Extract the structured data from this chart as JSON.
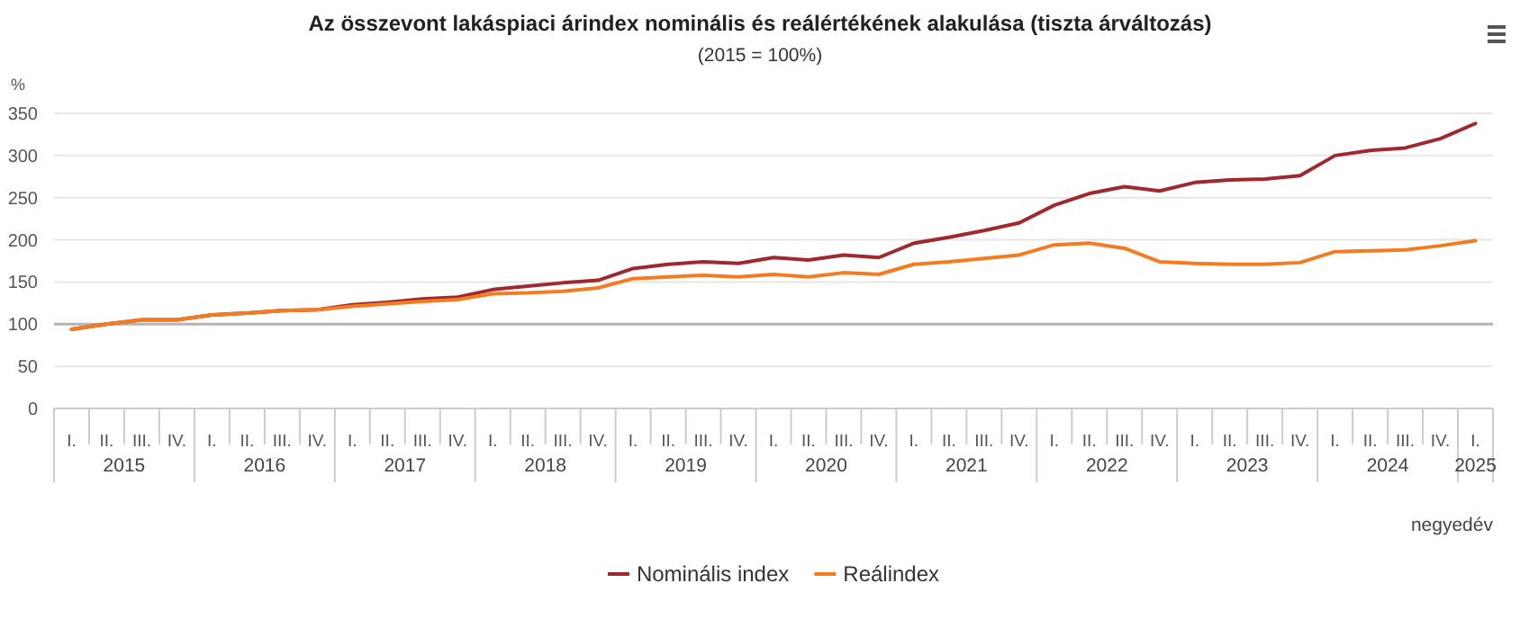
{
  "chart_data": {
    "type": "line",
    "title": "Az összevont lakáspiaci árindex nominális és reálértékének alakulása (tiszta árváltozás)",
    "subtitle": "(2015 = 100%)",
    "ylabel": "%",
    "xlabel": "negyedév",
    "categories": [
      "I.",
      "II.",
      "III.",
      "IV.",
      "I.",
      "II.",
      "III.",
      "IV.",
      "I.",
      "II.",
      "III.",
      "IV.",
      "I.",
      "II.",
      "III.",
      "IV.",
      "I.",
      "II.",
      "III.",
      "IV.",
      "I.",
      "II.",
      "III.",
      "IV.",
      "I.",
      "II.",
      "III.",
      "IV.",
      "I.",
      "II.",
      "III.",
      "IV.",
      "I.",
      "II.",
      "III.",
      "IV.",
      "I.",
      "II.",
      "III.",
      "IV.",
      "I."
    ],
    "annotations": [
      "2015",
      "2016",
      "2017",
      "2018",
      "2019",
      "2020",
      "2021",
      "2022",
      "2023",
      "2024",
      "2025"
    ],
    "series": [
      {
        "name": "Nominális index",
        "color": "#9e2a2f",
        "values": [
          94,
          100,
          105,
          105,
          111,
          113,
          116,
          117,
          123,
          126,
          130,
          132,
          141,
          145,
          149,
          152,
          166,
          171,
          174,
          172,
          179,
          176,
          182,
          179,
          196,
          203,
          211,
          220,
          241,
          255,
          263,
          258,
          268,
          271,
          272,
          276,
          300,
          306,
          309,
          320,
          338
        ]
      },
      {
        "name": "Reálindex",
        "color": "#f47c20",
        "values": [
          94,
          100,
          105,
          105,
          111,
          113,
          116,
          117,
          121,
          124,
          127,
          129,
          136,
          137,
          139,
          143,
          154,
          156,
          158,
          156,
          159,
          156,
          161,
          159,
          171,
          174,
          178,
          182,
          194,
          196,
          190,
          174,
          172,
          171,
          171,
          173,
          186,
          187,
          188,
          193,
          199
        ]
      }
    ],
    "ylim": [
      0,
      350
    ],
    "yticks": [
      0,
      50,
      100,
      150,
      200,
      250,
      300,
      350
    ],
    "grid": "y",
    "legend": "bottom",
    "ref_lines": [
      {
        "axis": "y",
        "value": 100,
        "color": "#b4b4b4"
      }
    ]
  }
}
